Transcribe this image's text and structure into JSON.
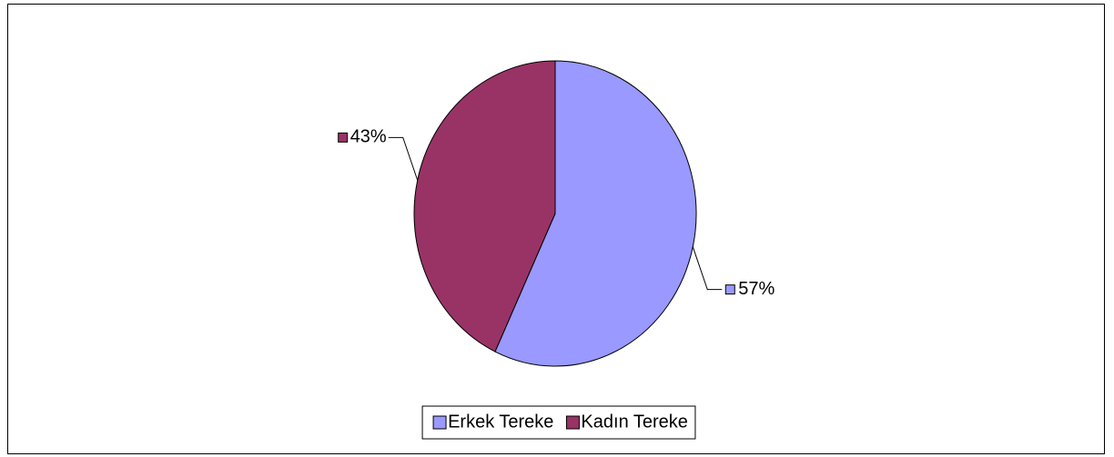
{
  "chart_data": {
    "type": "pie",
    "categories": [
      "Erkek Tereke",
      "Kadın Tereke"
    ],
    "values": [
      57,
      43
    ],
    "value_labels": [
      "57%",
      "43%"
    ],
    "colors": [
      "#9999ff",
      "#993366"
    ],
    "legend": "bottom"
  }
}
